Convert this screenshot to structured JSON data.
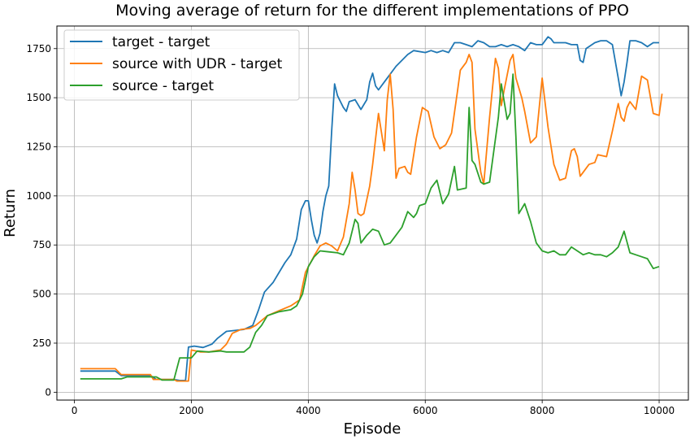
{
  "chart_data": {
    "type": "line",
    "title": "Moving average of return for the different implementations of PPO",
    "xlabel": "Episode",
    "ylabel": "Return",
    "xlim": [
      -300,
      10500
    ],
    "ylim": [
      -40,
      1865
    ],
    "xticks": [
      0,
      2000,
      4000,
      6000,
      8000,
      10000
    ],
    "yticks": [
      0,
      250,
      500,
      750,
      1000,
      1250,
      1500,
      1750
    ],
    "grid": true,
    "legend_position": "top-left",
    "series": [
      {
        "name": "target - target",
        "color": "#1f77b4",
        "points": [
          [
            100,
            108
          ],
          [
            700,
            108
          ],
          [
            800,
            85
          ],
          [
            1300,
            85
          ],
          [
            1400,
            65
          ],
          [
            1700,
            65
          ],
          [
            1800,
            60
          ],
          [
            1900,
            60
          ],
          [
            1950,
            230
          ],
          [
            2050,
            235
          ],
          [
            2200,
            228
          ],
          [
            2350,
            245
          ],
          [
            2450,
            275
          ],
          [
            2600,
            310
          ],
          [
            2900,
            320
          ],
          [
            3050,
            340
          ],
          [
            3150,
            420
          ],
          [
            3250,
            510
          ],
          [
            3400,
            560
          ],
          [
            3500,
            610
          ],
          [
            3600,
            660
          ],
          [
            3700,
            700
          ],
          [
            3800,
            780
          ],
          [
            3880,
            930
          ],
          [
            3950,
            975
          ],
          [
            4000,
            975
          ],
          [
            4050,
            880
          ],
          [
            4100,
            800
          ],
          [
            4150,
            760
          ],
          [
            4200,
            810
          ],
          [
            4250,
            920
          ],
          [
            4300,
            1000
          ],
          [
            4350,
            1050
          ],
          [
            4400,
            1330
          ],
          [
            4450,
            1570
          ],
          [
            4500,
            1510
          ],
          [
            4550,
            1480
          ],
          [
            4600,
            1450
          ],
          [
            4650,
            1430
          ],
          [
            4700,
            1480
          ],
          [
            4800,
            1490
          ],
          [
            4900,
            1440
          ],
          [
            5000,
            1490
          ],
          [
            5050,
            1580
          ],
          [
            5100,
            1625
          ],
          [
            5150,
            1560
          ],
          [
            5200,
            1540
          ],
          [
            5300,
            1580
          ],
          [
            5400,
            1620
          ],
          [
            5500,
            1660
          ],
          [
            5600,
            1690
          ],
          [
            5700,
            1720
          ],
          [
            5800,
            1740
          ],
          [
            6000,
            1730
          ],
          [
            6100,
            1740
          ],
          [
            6200,
            1730
          ],
          [
            6300,
            1740
          ],
          [
            6400,
            1730
          ],
          [
            6500,
            1780
          ],
          [
            6600,
            1780
          ],
          [
            6700,
            1770
          ],
          [
            6800,
            1760
          ],
          [
            6900,
            1790
          ],
          [
            7000,
            1780
          ],
          [
            7100,
            1760
          ],
          [
            7200,
            1760
          ],
          [
            7300,
            1770
          ],
          [
            7400,
            1760
          ],
          [
            7500,
            1770
          ],
          [
            7600,
            1760
          ],
          [
            7700,
            1740
          ],
          [
            7800,
            1780
          ],
          [
            7900,
            1770
          ],
          [
            8000,
            1770
          ],
          [
            8100,
            1810
          ],
          [
            8150,
            1800
          ],
          [
            8200,
            1780
          ],
          [
            8300,
            1780
          ],
          [
            8400,
            1780
          ],
          [
            8500,
            1770
          ],
          [
            8600,
            1770
          ],
          [
            8650,
            1690
          ],
          [
            8700,
            1680
          ],
          [
            8750,
            1750
          ],
          [
            8800,
            1760
          ],
          [
            8900,
            1780
          ],
          [
            9000,
            1790
          ],
          [
            9100,
            1790
          ],
          [
            9200,
            1770
          ],
          [
            9300,
            1600
          ],
          [
            9350,
            1510
          ],
          [
            9400,
            1580
          ],
          [
            9450,
            1680
          ],
          [
            9500,
            1790
          ],
          [
            9600,
            1790
          ],
          [
            9700,
            1780
          ],
          [
            9800,
            1760
          ],
          [
            9900,
            1780
          ],
          [
            10000,
            1780
          ]
        ]
      },
      {
        "name": "source with UDR - target",
        "color": "#ff7f0e",
        "points": [
          [
            100,
            120
          ],
          [
            700,
            120
          ],
          [
            800,
            90
          ],
          [
            1300,
            90
          ],
          [
            1350,
            65
          ],
          [
            1700,
            65
          ],
          [
            1750,
            57
          ],
          [
            1950,
            57
          ],
          [
            2000,
            215
          ],
          [
            2150,
            205
          ],
          [
            2300,
            205
          ],
          [
            2500,
            215
          ],
          [
            2600,
            245
          ],
          [
            2700,
            300
          ],
          [
            2850,
            320
          ],
          [
            3000,
            325
          ],
          [
            3100,
            340
          ],
          [
            3300,
            390
          ],
          [
            3500,
            415
          ],
          [
            3700,
            440
          ],
          [
            3850,
            470
          ],
          [
            3950,
            610
          ],
          [
            4100,
            695
          ],
          [
            4200,
            745
          ],
          [
            4300,
            760
          ],
          [
            4400,
            745
          ],
          [
            4500,
            720
          ],
          [
            4600,
            790
          ],
          [
            4700,
            960
          ],
          [
            4750,
            1120
          ],
          [
            4800,
            1030
          ],
          [
            4850,
            910
          ],
          [
            4900,
            900
          ],
          [
            4950,
            910
          ],
          [
            5050,
            1050
          ],
          [
            5100,
            1160
          ],
          [
            5200,
            1420
          ],
          [
            5300,
            1230
          ],
          [
            5350,
            1490
          ],
          [
            5400,
            1620
          ],
          [
            5450,
            1440
          ],
          [
            5500,
            1090
          ],
          [
            5550,
            1140
          ],
          [
            5650,
            1150
          ],
          [
            5700,
            1120
          ],
          [
            5750,
            1110
          ],
          [
            5850,
            1300
          ],
          [
            5950,
            1450
          ],
          [
            6050,
            1430
          ],
          [
            6150,
            1300
          ],
          [
            6250,
            1240
          ],
          [
            6350,
            1260
          ],
          [
            6450,
            1320
          ],
          [
            6550,
            1530
          ],
          [
            6600,
            1640
          ],
          [
            6700,
            1680
          ],
          [
            6750,
            1720
          ],
          [
            6800,
            1680
          ],
          [
            6850,
            1340
          ],
          [
            6950,
            1120
          ],
          [
            7000,
            1060
          ],
          [
            7100,
            1400
          ],
          [
            7200,
            1700
          ],
          [
            7250,
            1650
          ],
          [
            7300,
            1460
          ],
          [
            7350,
            1540
          ],
          [
            7450,
            1690
          ],
          [
            7500,
            1720
          ],
          [
            7550,
            1600
          ],
          [
            7650,
            1500
          ],
          [
            7700,
            1430
          ],
          [
            7800,
            1270
          ],
          [
            7900,
            1300
          ],
          [
            8000,
            1600
          ],
          [
            8100,
            1350
          ],
          [
            8200,
            1160
          ],
          [
            8300,
            1080
          ],
          [
            8400,
            1090
          ],
          [
            8500,
            1230
          ],
          [
            8550,
            1240
          ],
          [
            8600,
            1200
          ],
          [
            8650,
            1100
          ],
          [
            8700,
            1120
          ],
          [
            8800,
            1160
          ],
          [
            8900,
            1170
          ],
          [
            8950,
            1210
          ],
          [
            9100,
            1200
          ],
          [
            9200,
            1330
          ],
          [
            9300,
            1470
          ],
          [
            9350,
            1400
          ],
          [
            9400,
            1380
          ],
          [
            9450,
            1450
          ],
          [
            9500,
            1480
          ],
          [
            9600,
            1440
          ],
          [
            9700,
            1610
          ],
          [
            9800,
            1590
          ],
          [
            9900,
            1420
          ],
          [
            10000,
            1410
          ],
          [
            10050,
            1520
          ]
        ]
      },
      {
        "name": "source - target",
        "color": "#2ca02c",
        "points": [
          [
            100,
            68
          ],
          [
            800,
            68
          ],
          [
            900,
            78
          ],
          [
            1400,
            78
          ],
          [
            1500,
            62
          ],
          [
            1700,
            62
          ],
          [
            1800,
            175
          ],
          [
            2000,
            175
          ],
          [
            2100,
            210
          ],
          [
            2300,
            205
          ],
          [
            2500,
            210
          ],
          [
            2600,
            205
          ],
          [
            2900,
            205
          ],
          [
            3000,
            230
          ],
          [
            3100,
            305
          ],
          [
            3200,
            340
          ],
          [
            3300,
            390
          ],
          [
            3500,
            410
          ],
          [
            3700,
            420
          ],
          [
            3800,
            440
          ],
          [
            3900,
            500
          ],
          [
            4000,
            640
          ],
          [
            4100,
            690
          ],
          [
            4200,
            720
          ],
          [
            4350,
            715
          ],
          [
            4500,
            710
          ],
          [
            4600,
            700
          ],
          [
            4700,
            760
          ],
          [
            4800,
            880
          ],
          [
            4850,
            860
          ],
          [
            4900,
            760
          ],
          [
            5000,
            800
          ],
          [
            5100,
            830
          ],
          [
            5200,
            820
          ],
          [
            5300,
            750
          ],
          [
            5400,
            760
          ],
          [
            5500,
            800
          ],
          [
            5600,
            840
          ],
          [
            5700,
            920
          ],
          [
            5800,
            890
          ],
          [
            5850,
            910
          ],
          [
            5900,
            950
          ],
          [
            6000,
            960
          ],
          [
            6100,
            1040
          ],
          [
            6200,
            1080
          ],
          [
            6300,
            960
          ],
          [
            6400,
            1010
          ],
          [
            6500,
            1150
          ],
          [
            6550,
            1030
          ],
          [
            6700,
            1040
          ],
          [
            6750,
            1450
          ],
          [
            6800,
            1180
          ],
          [
            6850,
            1160
          ],
          [
            6950,
            1070
          ],
          [
            7000,
            1060
          ],
          [
            7100,
            1070
          ],
          [
            7150,
            1180
          ],
          [
            7250,
            1400
          ],
          [
            7300,
            1570
          ],
          [
            7400,
            1390
          ],
          [
            7450,
            1420
          ],
          [
            7500,
            1620
          ],
          [
            7550,
            1300
          ],
          [
            7600,
            910
          ],
          [
            7700,
            960
          ],
          [
            7800,
            870
          ],
          [
            7900,
            760
          ],
          [
            8000,
            720
          ],
          [
            8100,
            710
          ],
          [
            8200,
            720
          ],
          [
            8300,
            700
          ],
          [
            8400,
            700
          ],
          [
            8500,
            740
          ],
          [
            8600,
            720
          ],
          [
            8700,
            700
          ],
          [
            8800,
            710
          ],
          [
            8900,
            700
          ],
          [
            9000,
            700
          ],
          [
            9100,
            690
          ],
          [
            9200,
            710
          ],
          [
            9300,
            740
          ],
          [
            9400,
            820
          ],
          [
            9500,
            710
          ],
          [
            9600,
            700
          ],
          [
            9700,
            690
          ],
          [
            9800,
            680
          ],
          [
            9900,
            630
          ],
          [
            10000,
            640
          ]
        ]
      }
    ]
  }
}
